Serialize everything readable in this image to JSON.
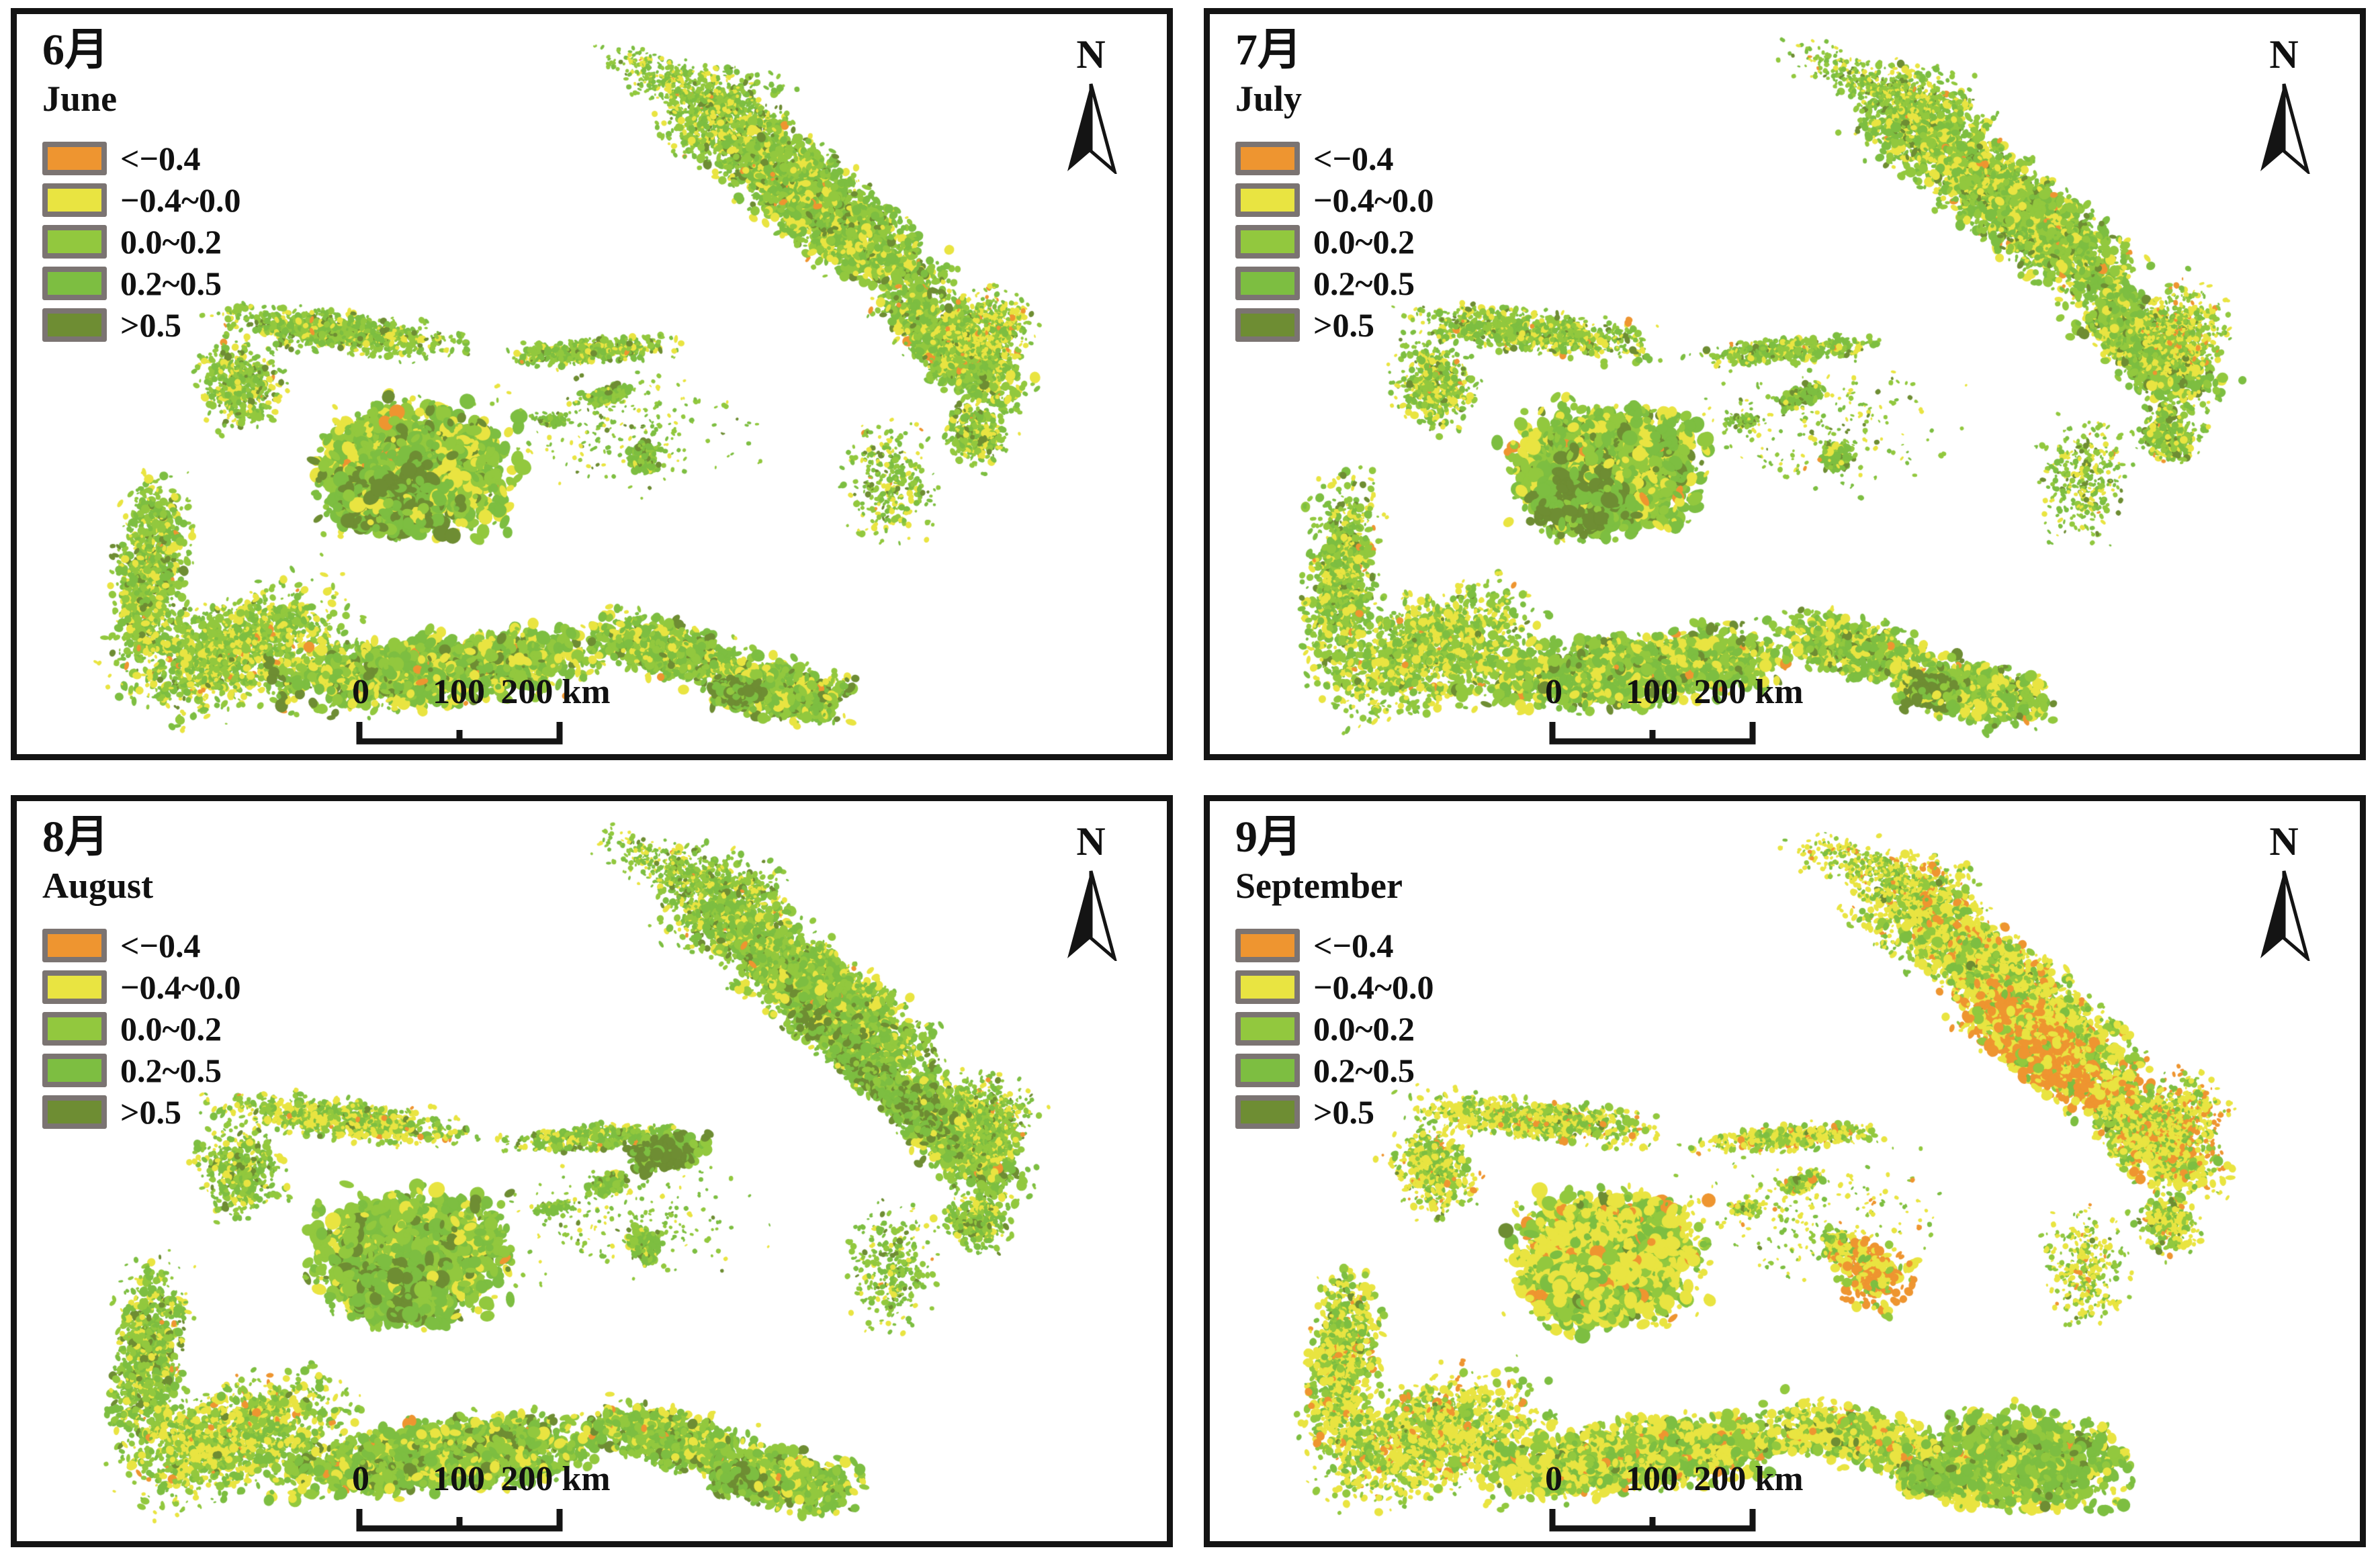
{
  "figure": {
    "background": "#ffffff",
    "panel_border_color": "#141414"
  },
  "north_label": "N",
  "legend": {
    "swatch_border_color": "#7B7472",
    "classes": [
      {
        "label": "<−0.4",
        "color": "#EE9530"
      },
      {
        "label": "−0.4~0.0",
        "color": "#E9E441"
      },
      {
        "label": "0.0~0.2",
        "color": "#92C83E"
      },
      {
        "label": "0.2~0.5",
        "color": "#7DBE41"
      },
      {
        "label": ">0.5",
        "color": "#6E8D33"
      }
    ]
  },
  "scalebar": {
    "labels": [
      "0",
      "100",
      "200 km"
    ]
  },
  "panels": [
    {
      "month_cn": "6月",
      "month_en": "June"
    },
    {
      "month_cn": "7月",
      "month_en": "July"
    },
    {
      "month_cn": "8月",
      "month_en": "August"
    },
    {
      "month_cn": "9月",
      "month_en": "September"
    }
  ],
  "map": {
    "zones": [
      [
        "arm_top",
        0.615,
        0.14,
        0.075,
        0.09,
        15,
        700,
        2,
        6
      ],
      [
        "arm_mid",
        0.7,
        0.26,
        0.16,
        0.078,
        38,
        2200,
        2,
        8
      ],
      [
        "arm_low",
        0.815,
        0.45,
        0.095,
        0.065,
        42,
        1100,
        2,
        8
      ],
      [
        "arm_tail",
        0.835,
        0.57,
        0.035,
        0.05,
        35,
        300,
        2,
        6
      ],
      [
        "arm_edge",
        0.845,
        0.43,
        0.045,
        0.078,
        40,
        500,
        2,
        5
      ],
      [
        "tarbagatay",
        0.28,
        0.43,
        0.135,
        0.035,
        6,
        800,
        2,
        6
      ],
      [
        "junggar_w",
        0.195,
        0.5,
        0.045,
        0.078,
        -25,
        450,
        2,
        6
      ],
      [
        "ili_blob",
        0.345,
        0.615,
        0.1,
        0.108,
        0,
        2000,
        3,
        12
      ],
      [
        "ili_core",
        0.325,
        0.662,
        0.055,
        0.05,
        0,
        600,
        5,
        13
      ],
      [
        "rim_s",
        0.5,
        0.455,
        0.095,
        0.022,
        -4,
        380,
        2,
        6
      ],
      [
        "west_strip",
        0.115,
        0.76,
        0.04,
        0.165,
        5,
        850,
        2,
        7
      ],
      [
        "sw_fan",
        0.19,
        0.86,
        0.125,
        0.095,
        -18,
        1300,
        2,
        7
      ],
      [
        "tianshan",
        0.37,
        0.885,
        0.175,
        0.06,
        -6,
        1700,
        3,
        10
      ],
      [
        "tianshan_e",
        0.565,
        0.86,
        0.09,
        0.05,
        14,
        750,
        3,
        8
      ],
      [
        "se_tail",
        0.665,
        0.915,
        0.08,
        0.05,
        10,
        650,
        3,
        9
      ],
      [
        "se_dark",
        0.625,
        0.915,
        0.028,
        0.026,
        0,
        220,
        4,
        10
      ],
      [
        "mid_p1",
        0.515,
        0.515,
        0.024,
        0.015,
        -20,
        130,
        3,
        7
      ],
      [
        "mid_p2",
        0.545,
        0.6,
        0.018,
        0.028,
        25,
        130,
        3,
        7
      ],
      [
        "mid_p3",
        0.465,
        0.55,
        0.02,
        0.012,
        0,
        90,
        2,
        5
      ],
      [
        "east_sp",
        0.76,
        0.63,
        0.05,
        0.11,
        0,
        300,
        2,
        5
      ],
      [
        "north_sp",
        0.57,
        0.09,
        0.09,
        0.04,
        20,
        300,
        2,
        4
      ],
      [
        "cen_sp",
        0.53,
        0.56,
        0.15,
        0.11,
        0,
        200,
        2,
        4
      ],
      [
        "sep_or_band",
        0.715,
        0.33,
        0.1,
        0.058,
        38,
        0,
        3,
        9
      ],
      [
        "sep_or_mid",
        0.575,
        0.64,
        0.045,
        0.065,
        20,
        0,
        3,
        8
      ],
      [
        "sep_green_se",
        0.715,
        0.885,
        0.1,
        0.078,
        8,
        0,
        3,
        10
      ],
      [
        "aug_dark_nc",
        0.565,
        0.475,
        0.042,
        0.028,
        -10,
        0,
        4,
        10
      ],
      [
        "aug_dark_arm",
        0.745,
        0.37,
        0.125,
        0.038,
        40,
        0,
        3,
        8
      ]
    ],
    "panel_styles": [
      {
        "default": [
          0.01,
          0.2,
          0.38,
          0.33,
          0.08
        ],
        "overrides": {
          "ili_core": [
            0,
            0.04,
            0.14,
            0.34,
            0.48
          ],
          "se_dark": [
            0,
            0.03,
            0.1,
            0.32,
            0.55
          ],
          "arm_edge": [
            0.08,
            0.36,
            0.34,
            0.2,
            0.02
          ],
          "sw_fan": [
            0.02,
            0.32,
            0.38,
            0.26,
            0.02
          ],
          "mid_p1": [
            0,
            0.05,
            0.25,
            0.58,
            0.12
          ],
          "mid_p2": [
            0,
            0.05,
            0.25,
            0.58,
            0.12
          ],
          "mid_p3": [
            0,
            0.05,
            0.25,
            0.58,
            0.12
          ],
          "north_sp": [
            0.01,
            0.22,
            0.42,
            0.3,
            0.05
          ]
        },
        "n_overrides": {}
      },
      {
        "default": [
          0.012,
          0.22,
          0.37,
          0.32,
          0.076
        ],
        "overrides": {
          "ili_core": [
            0,
            0.04,
            0.14,
            0.34,
            0.48
          ],
          "se_dark": [
            0,
            0.03,
            0.1,
            0.32,
            0.55
          ],
          "arm_edge": [
            0.1,
            0.38,
            0.32,
            0.18,
            0.02
          ],
          "sw_fan": [
            0.02,
            0.34,
            0.37,
            0.25,
            0.02
          ],
          "mid_p1": [
            0,
            0.05,
            0.25,
            0.58,
            0.12
          ],
          "mid_p2": [
            0,
            0.05,
            0.25,
            0.58,
            0.12
          ],
          "mid_p3": [
            0,
            0.05,
            0.25,
            0.58,
            0.12
          ],
          "north_sp": [
            0.01,
            0.24,
            0.41,
            0.29,
            0.05
          ]
        },
        "n_overrides": {}
      },
      {
        "default": [
          0.008,
          0.17,
          0.4,
          0.35,
          0.072
        ],
        "overrides": {
          "aug_dark_nc": [
            0,
            0.02,
            0.1,
            0.25,
            0.63
          ],
          "aug_dark_arm": [
            0,
            0.05,
            0.2,
            0.38,
            0.37
          ],
          "ili_core": [
            0,
            0.05,
            0.28,
            0.45,
            0.22
          ],
          "se_dark": [
            0,
            0.03,
            0.12,
            0.35,
            0.5
          ],
          "tarbagatay": [
            0.03,
            0.38,
            0.34,
            0.23,
            0.02
          ],
          "sw_fan": [
            0.02,
            0.36,
            0.36,
            0.24,
            0.02
          ],
          "arm_edge": [
            0.02,
            0.22,
            0.4,
            0.32,
            0.04
          ],
          "mid_p1": [
            0,
            0.05,
            0.25,
            0.58,
            0.12
          ],
          "mid_p2": [
            0,
            0.05,
            0.25,
            0.58,
            0.12
          ],
          "mid_p3": [
            0,
            0.05,
            0.25,
            0.58,
            0.12
          ]
        },
        "n_overrides": {
          "aug_dark_nc": 260,
          "aug_dark_arm": 650
        }
      },
      {
        "default": [
          0.05,
          0.5,
          0.27,
          0.16,
          0.02
        ],
        "overrides": {
          "sep_or_band": [
            0.55,
            0.33,
            0.09,
            0.03,
            0
          ],
          "sep_or_mid": [
            0.48,
            0.36,
            0.11,
            0.05,
            0
          ],
          "sep_green_se": [
            0.01,
            0.14,
            0.33,
            0.47,
            0.05
          ],
          "arm_edge": [
            0.22,
            0.5,
            0.2,
            0.08,
            0
          ],
          "arm_mid": [
            0.1,
            0.52,
            0.26,
            0.11,
            0.01
          ],
          "arm_low": [
            0.12,
            0.5,
            0.26,
            0.11,
            0.01
          ],
          "ili_core": [
            0.04,
            0.44,
            0.32,
            0.17,
            0.03
          ],
          "se_dark": [
            0.01,
            0.1,
            0.27,
            0.45,
            0.17
          ],
          "tianshan": [
            0.04,
            0.44,
            0.32,
            0.18,
            0.02
          ],
          "sw_fan": [
            0.06,
            0.46,
            0.31,
            0.16,
            0.01
          ],
          "mid_p1": [
            0.05,
            0.4,
            0.3,
            0.22,
            0.03
          ],
          "mid_p2": [
            0.05,
            0.4,
            0.3,
            0.22,
            0.03
          ],
          "mid_p3": [
            0.05,
            0.4,
            0.3,
            0.22,
            0.03
          ]
        },
        "n_overrides": {
          "sep_or_band": 800,
          "sep_or_mid": 220,
          "sep_green_se": 1100
        }
      }
    ]
  }
}
